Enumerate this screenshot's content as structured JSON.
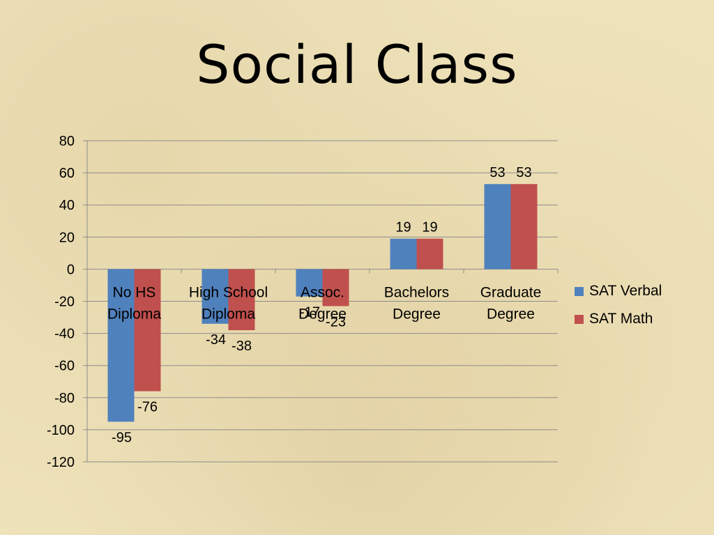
{
  "title": "Social Class",
  "chart_data": {
    "type": "bar",
    "categories": [
      [
        "No HS",
        "Diploma"
      ],
      [
        "High School",
        "Diploma"
      ],
      [
        "Assoc.",
        "Degree"
      ],
      [
        "Bachelors",
        "Degree"
      ],
      [
        "Graduate",
        "Degree"
      ]
    ],
    "series": [
      {
        "name": "SAT Verbal",
        "values": [
          -95,
          -34,
          -17,
          19,
          53
        ],
        "color": "#4f81bd"
      },
      {
        "name": "SAT Math",
        "values": [
          -76,
          -38,
          -23,
          19,
          53
        ],
        "color": "#c0504d"
      }
    ],
    "ylim": [
      -120,
      80
    ],
    "yticks": [
      80,
      60,
      40,
      20,
      0,
      -20,
      -40,
      -60,
      -80,
      -100,
      -120
    ],
    "grid": true,
    "legend_position": "right"
  }
}
